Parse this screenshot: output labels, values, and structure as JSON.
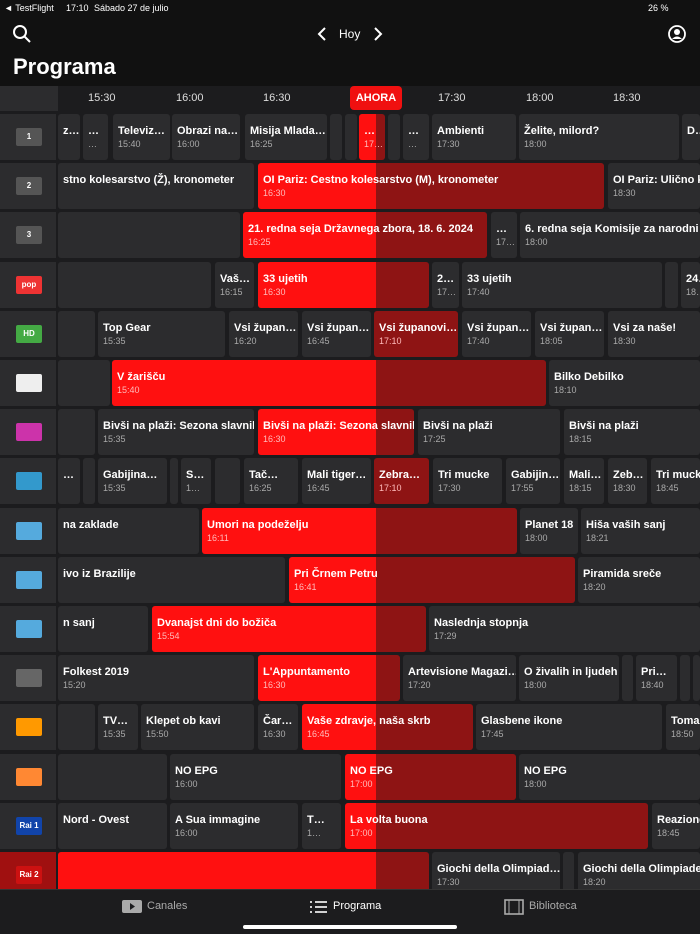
{
  "status": {
    "back": "◄ TestFlight",
    "time": "17:10",
    "date": "Sábado 27 de julio",
    "battery": "26 %"
  },
  "nav": {
    "day": "Hoy",
    "title": "Programa"
  },
  "timeline": {
    "ticks": [
      "15:30",
      "16:00",
      "16:30",
      "17:30",
      "18:00",
      "18:30"
    ],
    "now": "AHORA"
  },
  "rows": [
    {
      "logo": "1",
      "programs": [
        {
          "title": "z…"
        },
        {
          "title": "…",
          "time": "…"
        },
        {
          "title": "Televiz…",
          "time": "15:40"
        },
        {
          "title": "Obrazi na…",
          "time": "16:00"
        },
        {
          "title": "Misija Mlada…",
          "time": "16:25"
        },
        {
          "title": "…",
          "time": "17…"
        },
        {
          "title": "…",
          "time": "…"
        },
        {
          "title": "Ambienti",
          "time": "17:30"
        },
        {
          "title": "Želite, milord?",
          "time": "18:00"
        },
        {
          "title": "D…"
        }
      ]
    },
    {
      "logo": "2",
      "programs": [
        {
          "title": "stno kolesarstvo (Ž), kronometer"
        },
        {
          "title": "OI Pariz: Cestno kolesarstvo (M), kronometer",
          "time": "16:30"
        },
        {
          "title": "OI Pariz: Ulično kolesarstvo",
          "time": "18:30"
        }
      ]
    },
    {
      "logo": "3",
      "programs": [
        {
          "title": "21. redna seja Državnega zbora, 18. 6. 2024",
          "time": "16:25"
        },
        {
          "title": "…",
          "time": "17…"
        },
        {
          "title": "6. redna seja Komisije za narodni sk",
          "time": "18:00"
        }
      ]
    },
    {
      "logo": "pop",
      "programs": [
        {
          "title": "Vaš…",
          "time": "16:15"
        },
        {
          "title": "33 ujetih",
          "time": "16:30"
        },
        {
          "title": "2…",
          "time": "17…"
        },
        {
          "title": "33 ujetih",
          "time": "17:40"
        },
        {
          "title": "24…",
          "time": "18…"
        }
      ]
    },
    {
      "logo": "HD",
      "programs": [
        {
          "title": "Top Gear",
          "time": "15:35"
        },
        {
          "title": "Vsi župan…",
          "time": "16:20"
        },
        {
          "title": "Vsi župan…",
          "time": "16:45"
        },
        {
          "title": "Vsi županovi…",
          "time": "17:10"
        },
        {
          "title": "Vsi župan…",
          "time": "17:40"
        },
        {
          "title": "Vsi župan…",
          "time": "18:05"
        },
        {
          "title": "Vsi za naše!",
          "time": "18:30"
        }
      ]
    },
    {
      "programs": [
        {
          "title": "V žarišču",
          "time": "15:40"
        },
        {
          "title": "Bilko Debilko",
          "time": "18:10"
        }
      ]
    },
    {
      "programs": [
        {
          "title": "Bivši na plaži: Sezona slavnih",
          "time": "15:35"
        },
        {
          "title": "Bivši na plaži: Sezona slavnih",
          "time": "16:30"
        },
        {
          "title": "Bivši na plaži",
          "time": "17:25"
        },
        {
          "title": "Bivši na plaži",
          "time": "18:15"
        }
      ]
    },
    {
      "programs": [
        {
          "title": "…"
        },
        {
          "title": "Gabijina…",
          "time": "15:35"
        },
        {
          "title": "S…",
          "time": "1…"
        },
        {
          "title": "Tač…",
          "time": "16:25"
        },
        {
          "title": "Mali tiger…",
          "time": "16:45"
        },
        {
          "title": "Zebra…",
          "time": "17:10"
        },
        {
          "title": "Tri mucke",
          "time": "17:30"
        },
        {
          "title": "Gabijin…",
          "time": "17:55"
        },
        {
          "title": "Mali…",
          "time": "18:15"
        },
        {
          "title": "Zeb…",
          "time": "18:30"
        },
        {
          "title": "Tri mucke",
          "time": "18:45"
        }
      ]
    },
    {
      "programs": [
        {
          "title": "na zaklade"
        },
        {
          "title": "Umori na podeželju",
          "time": "16:11"
        },
        {
          "title": "Planet 18",
          "time": "18:00"
        },
        {
          "title": "Hiša vaših sanj",
          "time": "18:21"
        }
      ]
    },
    {
      "programs": [
        {
          "title": "ivo iz Brazilije"
        },
        {
          "title": "Pri Črnem Petru",
          "time": "16:41"
        },
        {
          "title": "Piramida sreče",
          "time": "18:20"
        }
      ]
    },
    {
      "programs": [
        {
          "title": "n sanj"
        },
        {
          "title": "Dvanajst dni do božiča",
          "time": "15:54"
        },
        {
          "title": "Naslednja stopnja",
          "time": "17:29"
        }
      ]
    },
    {
      "programs": [
        {
          "title": "Folkest 2019",
          "time": "15:20"
        },
        {
          "title": "L'Appuntamento",
          "time": "16:30"
        },
        {
          "title": "Artevisione Magazi…",
          "time": "17:20"
        },
        {
          "title": "O živalih in ljudeh",
          "time": "18:00"
        },
        {
          "title": "Pri…",
          "time": "18:40"
        }
      ]
    },
    {
      "programs": [
        {
          "title": "TV…",
          "time": "15:35"
        },
        {
          "title": "Klepet ob kavi",
          "time": "15:50"
        },
        {
          "title": "Čar…",
          "time": "16:30"
        },
        {
          "title": "Vaše zdravje, naša skrb",
          "time": "16:45"
        },
        {
          "title": "Glasbene ikone",
          "time": "17:45"
        },
        {
          "title": "Tomaž",
          "time": "18:50"
        }
      ]
    },
    {
      "programs": [
        {
          "title": "NO EPG",
          "time": "16:00"
        },
        {
          "title": "NO EPG",
          "time": "17:00"
        },
        {
          "title": "NO EPG",
          "time": "18:00"
        }
      ]
    },
    {
      "logo": "Rai 1",
      "programs": [
        {
          "title": "Nord - Ovest"
        },
        {
          "title": "A Sua immagine",
          "time": "16:00"
        },
        {
          "title": "T…",
          "time": "1…"
        },
        {
          "title": "La volta buona",
          "time": "17:00"
        },
        {
          "title": "Reazione",
          "time": "18:45"
        }
      ]
    },
    {
      "logo": "Rai 2",
      "programs": [
        {
          "title": "Giochi della Olimpiad…",
          "time": "17:30"
        },
        {
          "title": "Giochi della Olimpiade: Nuot",
          "time": "18:20"
        }
      ]
    }
  ],
  "tabs": [
    "Canales",
    "Programa",
    "Biblioteca"
  ]
}
